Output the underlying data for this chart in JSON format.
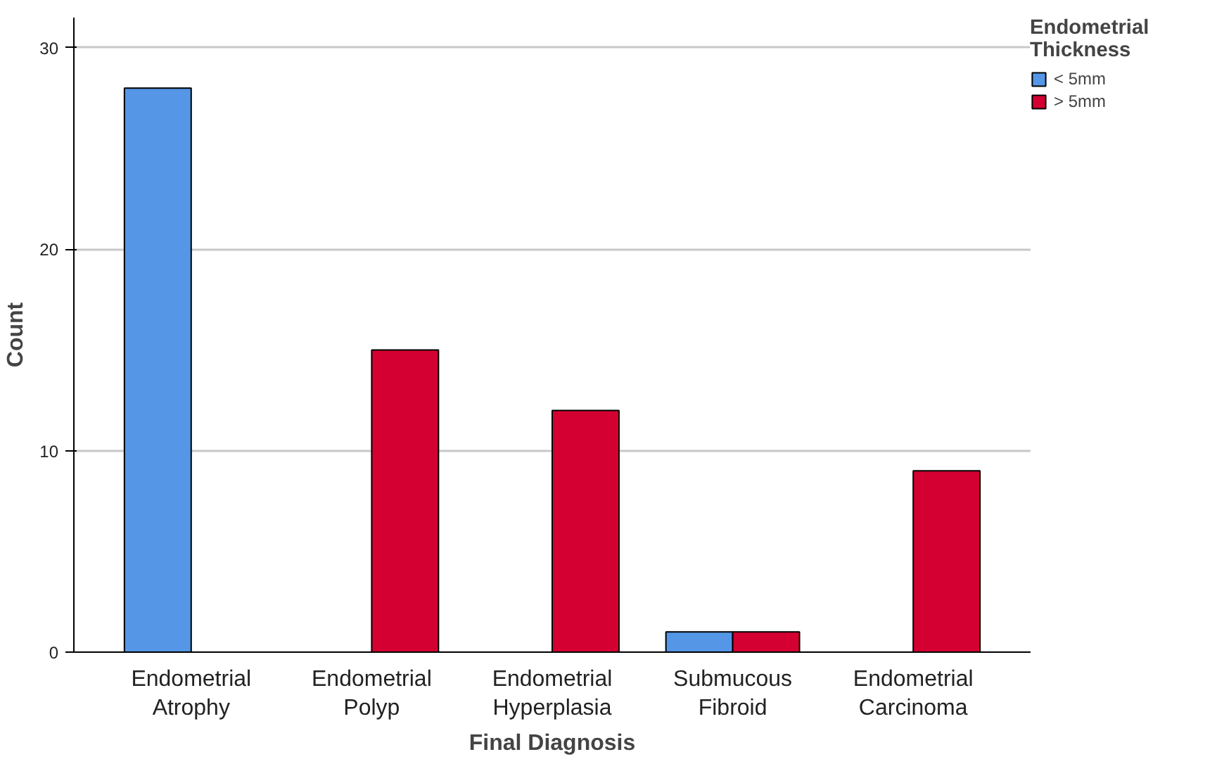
{
  "chart_data": {
    "type": "bar",
    "xlabel": "Final Diagnosis",
    "ylabel": "Count",
    "legend_title": "Endometrial Thickness",
    "categories": [
      "Endometrial Atrophy",
      "Endometrial Polyp",
      "Endometrial Hyperplasia",
      "Submucous Fibroid",
      "Endometrial Carcinoma"
    ],
    "series": [
      {
        "name": "< 5mm",
        "color": "#5596e6",
        "values": [
          28,
          null,
          null,
          1,
          null
        ]
      },
      {
        "name": "> 5mm",
        "color": "#d50032",
        "values": [
          null,
          15,
          12,
          1,
          9
        ]
      }
    ],
    "ylim": [
      0,
      31.5
    ],
    "yticks": [
      0,
      10,
      20,
      30
    ],
    "grid": "y",
    "legend": "top right"
  }
}
